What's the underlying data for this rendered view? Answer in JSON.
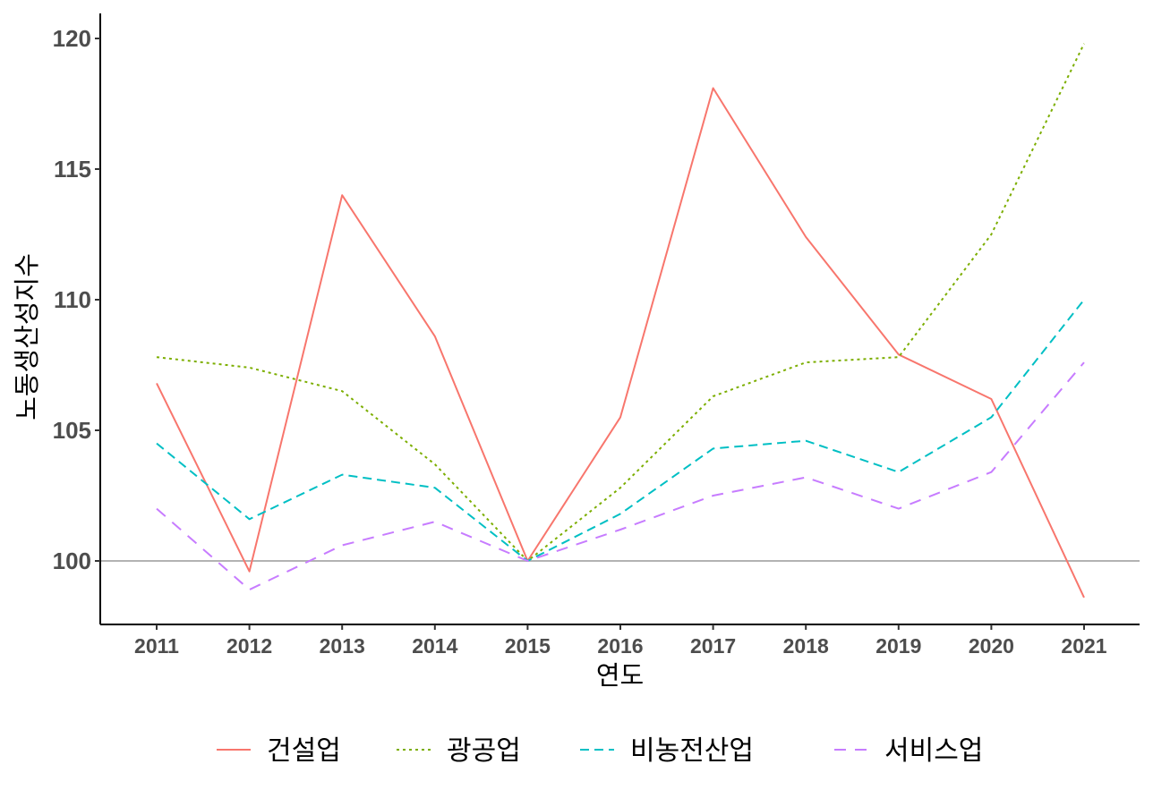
{
  "chart_data": {
    "type": "line",
    "title": "",
    "xlabel": "연도",
    "ylabel": "노동생산성지수",
    "x": [
      2011,
      2012,
      2013,
      2014,
      2015,
      2016,
      2017,
      2018,
      2019,
      2020,
      2021
    ],
    "x_tick_labels": [
      "2011",
      "2012",
      "2013",
      "2014",
      "2015",
      "2016",
      "2017",
      "2018",
      "2019",
      "2020",
      "2021"
    ],
    "ylim": [
      97.6,
      121
    ],
    "y_ticks": [
      100,
      105,
      110,
      115,
      120
    ],
    "y_tick_labels": [
      "100",
      "105",
      "110",
      "115",
      "120"
    ],
    "reference_line": 100,
    "grid": false,
    "legend_position": "bottom",
    "series": [
      {
        "name": "건설업",
        "color": "#F8766D",
        "linetype": "solid",
        "values": [
          106.8,
          99.6,
          114.0,
          108.6,
          100.0,
          105.5,
          118.1,
          112.4,
          107.9,
          106.2,
          98.6
        ]
      },
      {
        "name": "광공업",
        "color": "#7CAE00",
        "linetype": "dotted",
        "values": [
          107.8,
          107.4,
          106.5,
          103.7,
          100.0,
          102.8,
          106.3,
          107.6,
          107.8,
          112.5,
          119.8
        ]
      },
      {
        "name": "비농전산업",
        "color": "#00BFC4",
        "linetype": "dashed",
        "values": [
          104.5,
          101.6,
          103.3,
          102.8,
          100.0,
          101.8,
          104.3,
          104.6,
          103.4,
          105.5,
          110.0
        ]
      },
      {
        "name": "서비스업",
        "color": "#C77CFF",
        "linetype": "longdash",
        "values": [
          102.0,
          98.9,
          100.6,
          101.5,
          100.0,
          101.2,
          102.5,
          103.2,
          102.0,
          103.4,
          107.6
        ]
      }
    ]
  }
}
